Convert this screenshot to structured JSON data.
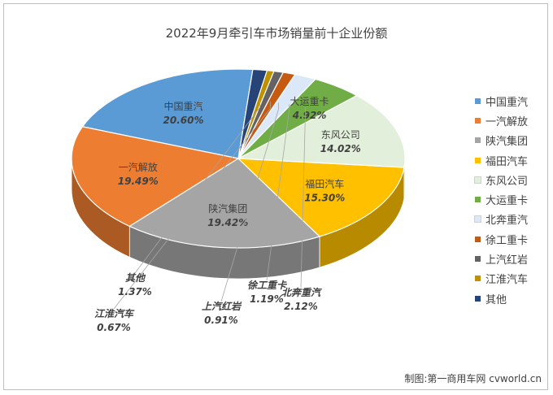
{
  "credit": "制图:第一商用车网 cvworld.cn",
  "chart_data": {
    "type": "pie",
    "title": "2022年9月牵引车市场销量前十企业份额",
    "slices": [
      {
        "name": "中国重汽",
        "value": 20.6,
        "label": "20.60%",
        "color": "#5b9bd5"
      },
      {
        "name": "一汽解放",
        "value": 19.49,
        "label": "19.49%",
        "color": "#ed7d31"
      },
      {
        "name": "陕汽集团",
        "value": 19.42,
        "label": "19.42%",
        "color": "#a5a5a5"
      },
      {
        "name": "福田汽车",
        "value": 15.3,
        "label": "15.30%",
        "color": "#ffc000"
      },
      {
        "name": "东风公司",
        "value": 14.02,
        "label": "14.02%",
        "color": "#e2efda"
      },
      {
        "name": "大运重卡",
        "value": 4.92,
        "label": "4.92%",
        "color": "#70ad47"
      },
      {
        "name": "北奔重汽",
        "value": 2.12,
        "label": "2.12%",
        "color": "#dae8f7"
      },
      {
        "name": "徐工重卡",
        "value": 1.19,
        "label": "1.19%",
        "color": "#c55a11"
      },
      {
        "name": "上汽红岩",
        "value": 0.91,
        "label": "0.91%",
        "color": "#636363"
      },
      {
        "name": "江淮汽车",
        "value": 0.67,
        "label": "0.67%",
        "color": "#bf9000"
      },
      {
        "name": "其他",
        "value": 1.37,
        "label": "1.37%",
        "color": "#264478"
      }
    ],
    "legend_position": "right"
  }
}
